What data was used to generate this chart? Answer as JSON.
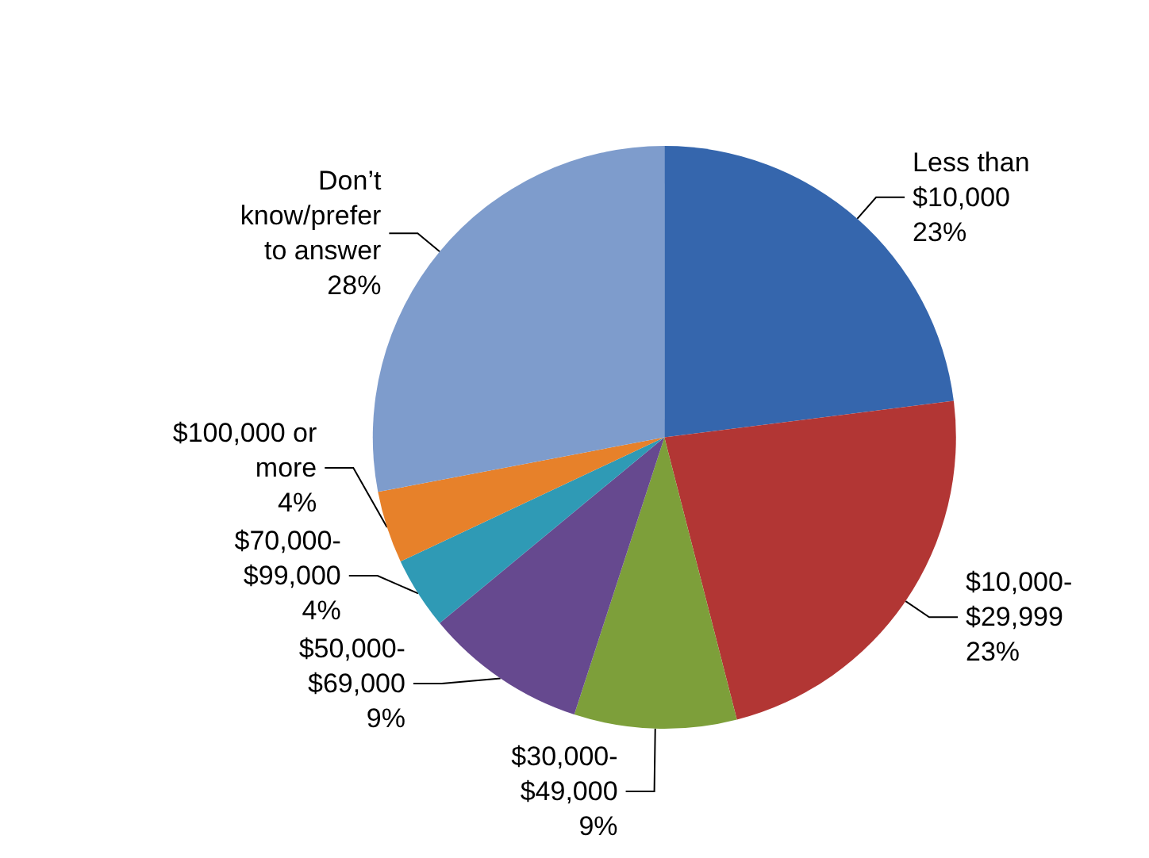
{
  "chart_data": {
    "type": "pie",
    "categories": [
      "Less than $10,000",
      "$10,000-$29,999",
      "$30,000-$49,000",
      "$50,000-$69,000",
      "$70,000-$99,000",
      "$100,000 or more",
      "Don’t know/prefer to answer"
    ],
    "values": [
      23,
      23,
      9,
      9,
      4,
      4,
      28
    ],
    "colors": [
      "#3566ad",
      "#b23634",
      "#7d9f3a",
      "#66498f",
      "#2f9ab5",
      "#e7812a",
      "#7e9ccc"
    ],
    "value_labels": [
      "23%",
      "23%",
      "9%",
      "9%",
      "4%",
      "4%",
      "28%"
    ],
    "legend": false
  }
}
